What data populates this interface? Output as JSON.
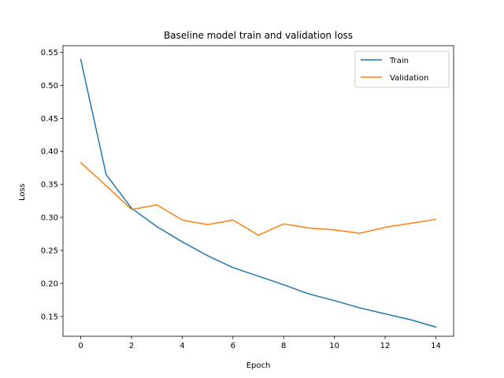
{
  "chart_data": {
    "type": "line",
    "title": "Baseline model train and validation loss",
    "xlabel": "Epoch",
    "ylabel": "Loss",
    "xlim": [
      -0.7,
      14.7
    ],
    "ylim": [
      0.12,
      0.56
    ],
    "xticks": [
      0,
      2,
      4,
      6,
      8,
      10,
      12,
      14
    ],
    "yticks": [
      0.15,
      0.2,
      0.25,
      0.3,
      0.35,
      0.4,
      0.45,
      0.5,
      0.55
    ],
    "grid": false,
    "legend_position": "top-right",
    "x": [
      0,
      1,
      2,
      3,
      4,
      5,
      6,
      7,
      8,
      9,
      10,
      11,
      12,
      13,
      14
    ],
    "series": [
      {
        "name": "Train",
        "color": "#1f77b4",
        "values": [
          0.539,
          0.365,
          0.314,
          0.286,
          0.263,
          0.242,
          0.224,
          0.211,
          0.198,
          0.184,
          0.174,
          0.163,
          0.154,
          0.145,
          0.134
        ]
      },
      {
        "name": "Validation",
        "color": "#ff7f0e",
        "values": [
          0.383,
          0.348,
          0.312,
          0.319,
          0.296,
          0.289,
          0.296,
          0.273,
          0.29,
          0.284,
          0.281,
          0.276,
          0.285,
          0.291,
          0.297
        ]
      }
    ]
  }
}
